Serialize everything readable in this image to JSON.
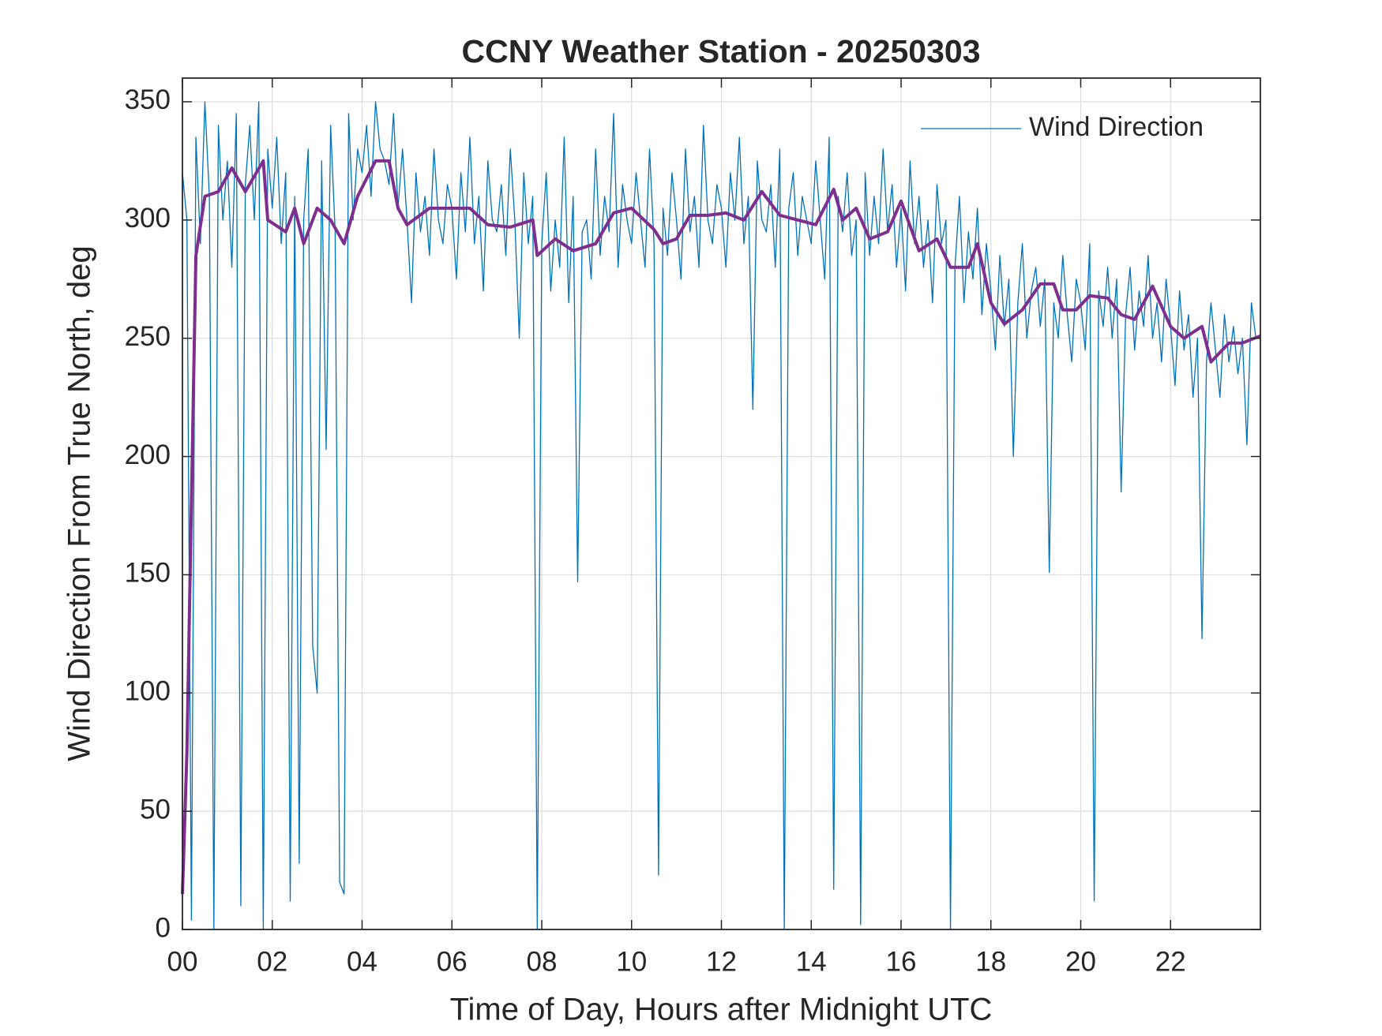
{
  "chart_data": {
    "type": "line",
    "title": "CCNY Weather Station - 20250303",
    "xlabel": "Time of Day, Hours after Midnight UTC",
    "ylabel": "Wind Direction From True North, deg",
    "xlim": [
      0,
      24
    ],
    "ylim": [
      0,
      360
    ],
    "xticks": [
      {
        "value": 0,
        "label": "00"
      },
      {
        "value": 2,
        "label": "02"
      },
      {
        "value": 4,
        "label": "04"
      },
      {
        "value": 6,
        "label": "06"
      },
      {
        "value": 8,
        "label": "08"
      },
      {
        "value": 10,
        "label": "10"
      },
      {
        "value": 12,
        "label": "12"
      },
      {
        "value": 14,
        "label": "14"
      },
      {
        "value": 16,
        "label": "16"
      },
      {
        "value": 18,
        "label": "18"
      },
      {
        "value": 20,
        "label": "20"
      },
      {
        "value": 22,
        "label": "22"
      }
    ],
    "yticks": [
      0,
      50,
      100,
      150,
      200,
      250,
      300,
      350
    ],
    "grid": true,
    "legend": "upper right",
    "series": [
      {
        "name": "Wind Direction",
        "color": "#0072bd",
        "width": 1.3,
        "x": [
          0,
          0.1,
          0.2,
          0.3,
          0.4,
          0.5,
          0.6,
          0.7,
          0.8,
          0.9,
          1,
          1.1,
          1.2,
          1.3,
          1.4,
          1.5,
          1.6,
          1.7,
          1.8,
          1.9,
          2,
          2.1,
          2.2,
          2.3,
          2.4,
          2.5,
          2.6,
          2.7,
          2.8,
          2.9,
          3,
          3.1,
          3.2,
          3.3,
          3.4,
          3.5,
          3.6,
          3.7,
          3.8,
          3.9,
          4,
          4.1,
          4.2,
          4.3,
          4.4,
          4.5,
          4.6,
          4.7,
          4.8,
          4.9,
          5,
          5.1,
          5.2,
          5.3,
          5.4,
          5.5,
          5.6,
          5.7,
          5.8,
          5.9,
          6,
          6.1,
          6.2,
          6.3,
          6.4,
          6.5,
          6.6,
          6.7,
          6.8,
          6.9,
          7,
          7.1,
          7.2,
          7.3,
          7.4,
          7.5,
          7.6,
          7.7,
          7.8,
          7.9,
          8,
          8.1,
          8.2,
          8.3,
          8.4,
          8.5,
          8.6,
          8.7,
          8.8,
          8.9,
          9,
          9.1,
          9.2,
          9.3,
          9.4,
          9.5,
          9.6,
          9.7,
          9.8,
          9.9,
          10,
          10.1,
          10.2,
          10.3,
          10.4,
          10.5,
          10.6,
          10.7,
          10.8,
          10.9,
          11,
          11.1,
          11.2,
          11.3,
          11.4,
          11.5,
          11.6,
          11.7,
          11.8,
          11.9,
          12,
          12.1,
          12.2,
          12.3,
          12.4,
          12.5,
          12.6,
          12.7,
          12.8,
          12.9,
          13,
          13.1,
          13.2,
          13.3,
          13.4,
          13.5,
          13.6,
          13.7,
          13.8,
          13.9,
          14,
          14.1,
          14.2,
          14.3,
          14.4,
          14.5,
          14.6,
          14.7,
          14.8,
          14.9,
          15,
          15.1,
          15.2,
          15.3,
          15.4,
          15.5,
          15.6,
          15.7,
          15.8,
          15.9,
          16,
          16.1,
          16.2,
          16.3,
          16.4,
          16.5,
          16.6,
          16.7,
          16.8,
          16.9,
          17,
          17.1,
          17.2,
          17.3,
          17.4,
          17.5,
          17.6,
          17.7,
          17.8,
          17.9,
          18,
          18.1,
          18.2,
          18.3,
          18.4,
          18.5,
          18.6,
          18.7,
          18.8,
          18.9,
          19,
          19.1,
          19.2,
          19.3,
          19.4,
          19.5,
          19.6,
          19.7,
          19.8,
          19.9,
          20,
          20.1,
          20.2,
          20.3,
          20.4,
          20.5,
          20.6,
          20.7,
          20.8,
          20.9,
          21,
          21.1,
          21.2,
          21.3,
          21.4,
          21.5,
          21.6,
          21.7,
          21.8,
          21.9,
          22,
          22.1,
          22.2,
          22.3,
          22.4,
          22.5,
          22.6,
          22.7,
          22.8,
          22.9,
          23,
          23.1,
          23.2,
          23.3,
          23.4,
          23.5,
          23.6,
          23.7,
          23.8,
          23.9
        ],
        "values": [
          320,
          300,
          4,
          335,
          290,
          350,
          310,
          0,
          340,
          300,
          325,
          280,
          345,
          10,
          315,
          340,
          300,
          350,
          0,
          330,
          305,
          335,
          290,
          320,
          12,
          310,
          28,
          300,
          330,
          120,
          100,
          325,
          203,
          340,
          295,
          20,
          15,
          345,
          300,
          330,
          320,
          340,
          310,
          350,
          330,
          325,
          315,
          345,
          305,
          330,
          300,
          265,
          320,
          295,
          310,
          285,
          330,
          300,
          290,
          315,
          305,
          275,
          320,
          295,
          335,
          290,
          310,
          270,
          325,
          300,
          295,
          315,
          285,
          330,
          300,
          250,
          320,
          290,
          310,
          0,
          290,
          320,
          270,
          300,
          280,
          335,
          265,
          310,
          147,
          295,
          300,
          275,
          330,
          285,
          310,
          295,
          345,
          280,
          315,
          300,
          290,
          320,
          300,
          280,
          330,
          290,
          23,
          305,
          285,
          320,
          300,
          275,
          330,
          295,
          310,
          280,
          340,
          300,
          290,
          315,
          305,
          280,
          320,
          300,
          335,
          290,
          310,
          220,
          325,
          300,
          295,
          315,
          280,
          330,
          0,
          305,
          320,
          285,
          310,
          300,
          290,
          325,
          300,
          275,
          335,
          17,
          310,
          295,
          320,
          285,
          300,
          2,
          320,
          285,
          310,
          290,
          330,
          295,
          315,
          280,
          305,
          270,
          325,
          290,
          310,
          280,
          300,
          265,
          315,
          290,
          300,
          0,
          280,
          310,
          265,
          295,
          275,
          305,
          260,
          290,
          270,
          245,
          285,
          255,
          275,
          200,
          265,
          290,
          250,
          270,
          280,
          255,
          275,
          151,
          265,
          250,
          285,
          260,
          240,
          275,
          265,
          245,
          290,
          12,
          270,
          255,
          280,
          250,
          275,
          185,
          260,
          280,
          245,
          270,
          255,
          285,
          250,
          265,
          240,
          275,
          255,
          230,
          270,
          245,
          260,
          225,
          250,
          123,
          240,
          265,
          245,
          225,
          260,
          240,
          255,
          235,
          250,
          205,
          265,
          250
        ]
      },
      {
        "color": "#7e2f8e",
        "width": 4,
        "x": [
          0,
          0.1,
          0.3,
          0.5,
          0.8,
          1.1,
          1.4,
          1.8,
          1.9,
          2.3,
          2.5,
          2.7,
          3,
          3.3,
          3.6,
          3.9,
          4.3,
          4.6,
          4.8,
          5,
          5.5,
          6,
          6.4,
          6.8,
          7.3,
          7.8,
          7.9,
          8.3,
          8.7,
          9.2,
          9.6,
          10,
          10.5,
          10.7,
          11,
          11.3,
          11.7,
          12.1,
          12.5,
          12.9,
          13.3,
          13.7,
          14.1,
          14.5,
          14.7,
          15,
          15.3,
          15.7,
          16,
          16.4,
          16.8,
          17.1,
          17.5,
          17.7,
          18,
          18.3,
          18.7,
          19.1,
          19.4,
          19.6,
          19.9,
          20.2,
          20.6,
          20.9,
          21.2,
          21.6,
          22,
          22.3,
          22.7,
          22.9,
          23.3,
          23.6,
          24
        ],
        "values": [
          15,
          75,
          285,
          310,
          312,
          322,
          312,
          325,
          300,
          295,
          305,
          290,
          305,
          300,
          290,
          310,
          325,
          325,
          305,
          298,
          305,
          305,
          305,
          298,
          297,
          300,
          285,
          292,
          287,
          290,
          303,
          305,
          296,
          290,
          292,
          302,
          302,
          303,
          300,
          312,
          302,
          300,
          298,
          313,
          300,
          305,
          292,
          295,
          308,
          287,
          292,
          280,
          280,
          290,
          265,
          256,
          262,
          273,
          273,
          262,
          262,
          268,
          267,
          260,
          258,
          272,
          255,
          250,
          255,
          240,
          248,
          248,
          251
        ]
      }
    ]
  }
}
